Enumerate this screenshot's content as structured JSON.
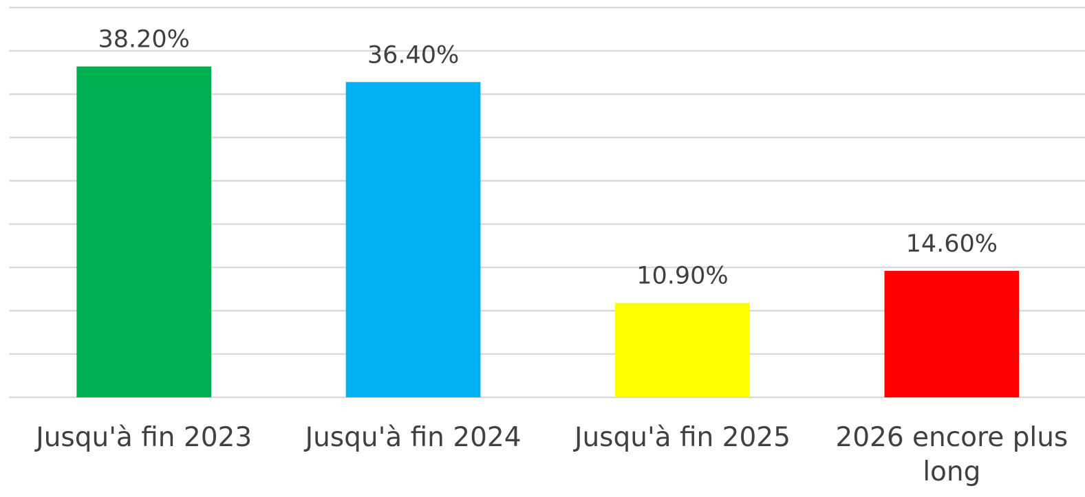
{
  "chart_data": {
    "type": "bar",
    "categories": [
      "Jusqu'à fin 2023",
      "Jusqu'à fin 2024",
      "Jusqu'à fin 2025",
      "2026 encore plus long"
    ],
    "values": [
      38.2,
      36.4,
      10.9,
      14.6
    ],
    "value_labels": [
      "38.20%",
      "36.40%",
      "10.90%",
      "14.60%"
    ],
    "colors": [
      "#00b050",
      "#00b0f0",
      "#ffff00",
      "#ff0000"
    ],
    "ylim": [
      0,
      45
    ],
    "yticks": [
      0,
      5,
      10,
      15,
      20,
      25,
      30,
      35,
      40,
      45
    ],
    "grid": true
  }
}
